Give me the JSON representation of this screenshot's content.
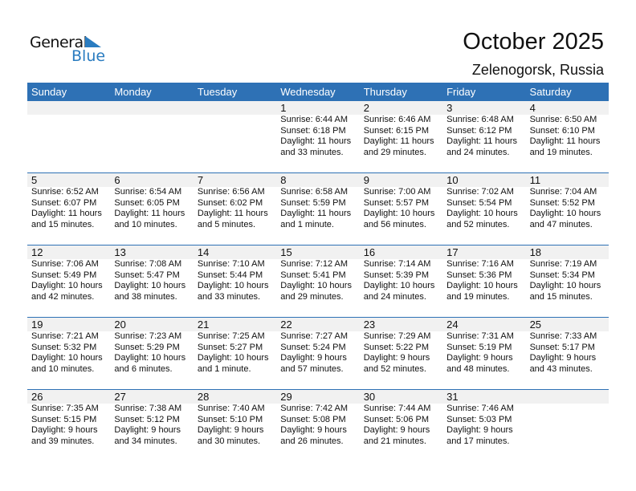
{
  "logo": {
    "line1": "General",
    "line2": "Blue"
  },
  "title": "October 2025",
  "location": "Zelenogorsk, Russia",
  "colors": {
    "header": "#2e71b5",
    "band": "#f1f1f1",
    "logo_blue": "#2a7cc0"
  },
  "days": [
    "Sunday",
    "Monday",
    "Tuesday",
    "Wednesday",
    "Thursday",
    "Friday",
    "Saturday"
  ],
  "weeks": [
    [
      null,
      null,
      null,
      {
        "day": "1",
        "sunrise": "Sunrise: 6:44 AM",
        "sunset": "Sunset: 6:18 PM",
        "daylight1": "Daylight: 11 hours",
        "daylight2": "and 33 minutes."
      },
      {
        "day": "2",
        "sunrise": "Sunrise: 6:46 AM",
        "sunset": "Sunset: 6:15 PM",
        "daylight1": "Daylight: 11 hours",
        "daylight2": "and 29 minutes."
      },
      {
        "day": "3",
        "sunrise": "Sunrise: 6:48 AM",
        "sunset": "Sunset: 6:12 PM",
        "daylight1": "Daylight: 11 hours",
        "daylight2": "and 24 minutes."
      },
      {
        "day": "4",
        "sunrise": "Sunrise: 6:50 AM",
        "sunset": "Sunset: 6:10 PM",
        "daylight1": "Daylight: 11 hours",
        "daylight2": "and 19 minutes."
      }
    ],
    [
      {
        "day": "5",
        "sunrise": "Sunrise: 6:52 AM",
        "sunset": "Sunset: 6:07 PM",
        "daylight1": "Daylight: 11 hours",
        "daylight2": "and 15 minutes."
      },
      {
        "day": "6",
        "sunrise": "Sunrise: 6:54 AM",
        "sunset": "Sunset: 6:05 PM",
        "daylight1": "Daylight: 11 hours",
        "daylight2": "and 10 minutes."
      },
      {
        "day": "7",
        "sunrise": "Sunrise: 6:56 AM",
        "sunset": "Sunset: 6:02 PM",
        "daylight1": "Daylight: 11 hours",
        "daylight2": "and 5 minutes."
      },
      {
        "day": "8",
        "sunrise": "Sunrise: 6:58 AM",
        "sunset": "Sunset: 5:59 PM",
        "daylight1": "Daylight: 11 hours",
        "daylight2": "and 1 minute."
      },
      {
        "day": "9",
        "sunrise": "Sunrise: 7:00 AM",
        "sunset": "Sunset: 5:57 PM",
        "daylight1": "Daylight: 10 hours",
        "daylight2": "and 56 minutes."
      },
      {
        "day": "10",
        "sunrise": "Sunrise: 7:02 AM",
        "sunset": "Sunset: 5:54 PM",
        "daylight1": "Daylight: 10 hours",
        "daylight2": "and 52 minutes."
      },
      {
        "day": "11",
        "sunrise": "Sunrise: 7:04 AM",
        "sunset": "Sunset: 5:52 PM",
        "daylight1": "Daylight: 10 hours",
        "daylight2": "and 47 minutes."
      }
    ],
    [
      {
        "day": "12",
        "sunrise": "Sunrise: 7:06 AM",
        "sunset": "Sunset: 5:49 PM",
        "daylight1": "Daylight: 10 hours",
        "daylight2": "and 42 minutes."
      },
      {
        "day": "13",
        "sunrise": "Sunrise: 7:08 AM",
        "sunset": "Sunset: 5:47 PM",
        "daylight1": "Daylight: 10 hours",
        "daylight2": "and 38 minutes."
      },
      {
        "day": "14",
        "sunrise": "Sunrise: 7:10 AM",
        "sunset": "Sunset: 5:44 PM",
        "daylight1": "Daylight: 10 hours",
        "daylight2": "and 33 minutes."
      },
      {
        "day": "15",
        "sunrise": "Sunrise: 7:12 AM",
        "sunset": "Sunset: 5:41 PM",
        "daylight1": "Daylight: 10 hours",
        "daylight2": "and 29 minutes."
      },
      {
        "day": "16",
        "sunrise": "Sunrise: 7:14 AM",
        "sunset": "Sunset: 5:39 PM",
        "daylight1": "Daylight: 10 hours",
        "daylight2": "and 24 minutes."
      },
      {
        "day": "17",
        "sunrise": "Sunrise: 7:16 AM",
        "sunset": "Sunset: 5:36 PM",
        "daylight1": "Daylight: 10 hours",
        "daylight2": "and 19 minutes."
      },
      {
        "day": "18",
        "sunrise": "Sunrise: 7:19 AM",
        "sunset": "Sunset: 5:34 PM",
        "daylight1": "Daylight: 10 hours",
        "daylight2": "and 15 minutes."
      }
    ],
    [
      {
        "day": "19",
        "sunrise": "Sunrise: 7:21 AM",
        "sunset": "Sunset: 5:32 PM",
        "daylight1": "Daylight: 10 hours",
        "daylight2": "and 10 minutes."
      },
      {
        "day": "20",
        "sunrise": "Sunrise: 7:23 AM",
        "sunset": "Sunset: 5:29 PM",
        "daylight1": "Daylight: 10 hours",
        "daylight2": "and 6 minutes."
      },
      {
        "day": "21",
        "sunrise": "Sunrise: 7:25 AM",
        "sunset": "Sunset: 5:27 PM",
        "daylight1": "Daylight: 10 hours",
        "daylight2": "and 1 minute."
      },
      {
        "day": "22",
        "sunrise": "Sunrise: 7:27 AM",
        "sunset": "Sunset: 5:24 PM",
        "daylight1": "Daylight: 9 hours",
        "daylight2": "and 57 minutes."
      },
      {
        "day": "23",
        "sunrise": "Sunrise: 7:29 AM",
        "sunset": "Sunset: 5:22 PM",
        "daylight1": "Daylight: 9 hours",
        "daylight2": "and 52 minutes."
      },
      {
        "day": "24",
        "sunrise": "Sunrise: 7:31 AM",
        "sunset": "Sunset: 5:19 PM",
        "daylight1": "Daylight: 9 hours",
        "daylight2": "and 48 minutes."
      },
      {
        "day": "25",
        "sunrise": "Sunrise: 7:33 AM",
        "sunset": "Sunset: 5:17 PM",
        "daylight1": "Daylight: 9 hours",
        "daylight2": "and 43 minutes."
      }
    ],
    [
      {
        "day": "26",
        "sunrise": "Sunrise: 7:35 AM",
        "sunset": "Sunset: 5:15 PM",
        "daylight1": "Daylight: 9 hours",
        "daylight2": "and 39 minutes."
      },
      {
        "day": "27",
        "sunrise": "Sunrise: 7:38 AM",
        "sunset": "Sunset: 5:12 PM",
        "daylight1": "Daylight: 9 hours",
        "daylight2": "and 34 minutes."
      },
      {
        "day": "28",
        "sunrise": "Sunrise: 7:40 AM",
        "sunset": "Sunset: 5:10 PM",
        "daylight1": "Daylight: 9 hours",
        "daylight2": "and 30 minutes."
      },
      {
        "day": "29",
        "sunrise": "Sunrise: 7:42 AM",
        "sunset": "Sunset: 5:08 PM",
        "daylight1": "Daylight: 9 hours",
        "daylight2": "and 26 minutes."
      },
      {
        "day": "30",
        "sunrise": "Sunrise: 7:44 AM",
        "sunset": "Sunset: 5:06 PM",
        "daylight1": "Daylight: 9 hours",
        "daylight2": "and 21 minutes."
      },
      {
        "day": "31",
        "sunrise": "Sunrise: 7:46 AM",
        "sunset": "Sunset: 5:03 PM",
        "daylight1": "Daylight: 9 hours",
        "daylight2": "and 17 minutes."
      },
      null
    ]
  ]
}
